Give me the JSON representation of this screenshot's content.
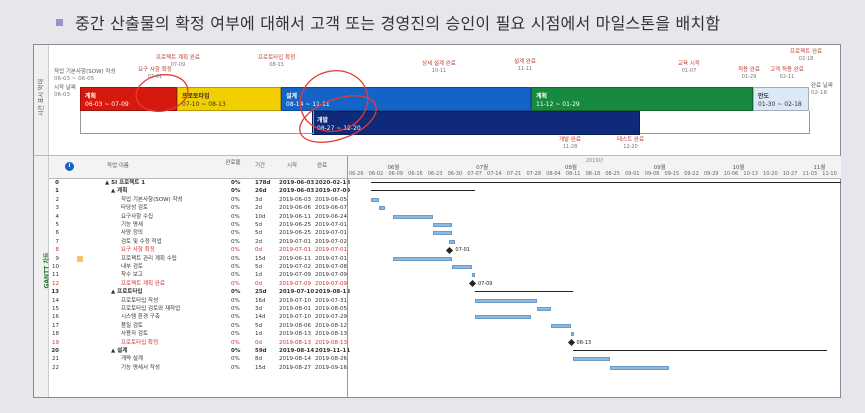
{
  "heading": "중간 산출물의 확정 여부에 대해서 고객 또는 경영진의 승인이 필요 시점에서 마일스톤을 배치함",
  "timeline": {
    "side_label": "시간 표시 막대",
    "left_labels": [
      {
        "text": "작업 기본사항(SOW) 작성",
        "date": "06-03 ~ 06-05"
      },
      {
        "text": "시작 날짜",
        "date": "06-03"
      }
    ],
    "end_label": {
      "text": "완료 날짜",
      "date": "02-18"
    },
    "bars": [
      {
        "name": "계획",
        "dates": "06-03 ~ 07-09",
        "color": "#d6190f"
      },
      {
        "name": "프로토타입",
        "dates": "07-10 ~ 08-13",
        "color": "#f2cf00"
      },
      {
        "name": "설계",
        "dates": "08-14 ~ 11-11",
        "color": "#1464c8"
      },
      {
        "name": "계획",
        "dates": "11-12 ~ 01-29",
        "color": "#178a3f"
      },
      {
        "name": "안도",
        "dates": "01-30 ~ 02-18",
        "color": "#dbe9f6"
      },
      {
        "name": "개발",
        "dates": "08-27 ~ 12-20",
        "color": "#0e2a78"
      }
    ],
    "milestones": [
      {
        "text": "요구 사항 확정",
        "date": "07-01"
      },
      {
        "text": "프로젝트 계획 완료",
        "date": "07-09"
      },
      {
        "text": "프로토타입 확정",
        "date": "08-13"
      },
      {
        "text": "상세 설계 완료",
        "date": "10-11"
      },
      {
        "text": "설계 완료",
        "date": "11-11"
      },
      {
        "text": "교육 시작",
        "date": "01-07"
      },
      {
        "text": "적용 완료",
        "date": "01-29"
      },
      {
        "text": "고객 적용 완료",
        "date": "02-11"
      },
      {
        "text": "프로젝트 완료",
        "date": "02-18"
      },
      {
        "text": "개발 완료",
        "date": "11-28"
      },
      {
        "text": "테스트 완료",
        "date": "12-20"
      }
    ]
  },
  "gantt": {
    "side_label": "GANTT 차트",
    "columns": [
      "작업 이름",
      "완료 율",
      "기간",
      "시작",
      "완료"
    ],
    "columns_sub": [
      "완료율"
    ],
    "rows": [
      {
        "id": "0",
        "name": "▲ SI 프로젝트 1",
        "pct": "0%",
        "dur": "178d",
        "start": "2019-06-03",
        "end": "2020-02-18",
        "style": "bold"
      },
      {
        "id": "1",
        "name": "▲ 계획",
        "pct": "0%",
        "dur": "26d",
        "start": "2019-06-03",
        "end": "2019-07-09",
        "style": "bold"
      },
      {
        "id": "2",
        "name": "작업 기본사항(SOW) 작성",
        "pct": "0%",
        "dur": "3d",
        "start": "2019-06-03",
        "end": "2019-06-05",
        "style": ""
      },
      {
        "id": "3",
        "name": "타당성 검토",
        "pct": "0%",
        "dur": "2d",
        "start": "2019-06-06",
        "end": "2019-06-07",
        "style": ""
      },
      {
        "id": "4",
        "name": "요구사항 수집",
        "pct": "0%",
        "dur": "10d",
        "start": "2019-06-11",
        "end": "2019-06-24",
        "style": ""
      },
      {
        "id": "5",
        "name": "기능 명세",
        "pct": "0%",
        "dur": "5d",
        "start": "2019-06-25",
        "end": "2019-07-01",
        "style": ""
      },
      {
        "id": "6",
        "name": "사양 정의",
        "pct": "0%",
        "dur": "5d",
        "start": "2019-06-25",
        "end": "2019-07-01",
        "style": ""
      },
      {
        "id": "7",
        "name": "검토 및 수정 작업",
        "pct": "0%",
        "dur": "2d",
        "start": "2019-07-01",
        "end": "2019-07-02",
        "style": ""
      },
      {
        "id": "8",
        "name": "요구 사항 확정",
        "pct": "0%",
        "dur": "0d",
        "start": "2019-07-01",
        "end": "2019-07-01",
        "style": "red"
      },
      {
        "id": "9",
        "name": "프로젝트 관리 계획 수립",
        "pct": "0%",
        "dur": "15d",
        "start": "2019-06-11",
        "end": "2019-07-01",
        "style": ""
      },
      {
        "id": "10",
        "name": "내부 검토",
        "pct": "0%",
        "dur": "5d",
        "start": "2019-07-02",
        "end": "2019-07-08",
        "style": ""
      },
      {
        "id": "11",
        "name": "착수 보고",
        "pct": "0%",
        "dur": "1d",
        "start": "2019-07-09",
        "end": "2019-07-09",
        "style": ""
      },
      {
        "id": "12",
        "name": "프로젝트 계획 완료",
        "pct": "0%",
        "dur": "0d",
        "start": "2019-07-09",
        "end": "2019-07-09",
        "style": "red"
      },
      {
        "id": "13",
        "name": "▲ 프로토타입",
        "pct": "0%",
        "dur": "25d",
        "start": "2019-07-10",
        "end": "2019-08-13",
        "style": "bold"
      },
      {
        "id": "14",
        "name": "프로토타입 작성",
        "pct": "0%",
        "dur": "16d",
        "start": "2019-07-10",
        "end": "2019-07-31",
        "style": ""
      },
      {
        "id": "15",
        "name": "프로토타입 검토와 재작업",
        "pct": "0%",
        "dur": "3d",
        "start": "2019-08-01",
        "end": "2019-08-05",
        "style": ""
      },
      {
        "id": "16",
        "name": "시스템 환경 구축",
        "pct": "0%",
        "dur": "14d",
        "start": "2019-07-10",
        "end": "2019-07-29",
        "style": ""
      },
      {
        "id": "17",
        "name": "품질 검토",
        "pct": "0%",
        "dur": "5d",
        "start": "2019-08-06",
        "end": "2019-08-12",
        "style": ""
      },
      {
        "id": "18",
        "name": "사용자 검토",
        "pct": "0%",
        "dur": "1d",
        "start": "2019-08-13",
        "end": "2019-08-13",
        "style": ""
      },
      {
        "id": "19",
        "name": "프로토타입 확정",
        "pct": "0%",
        "dur": "0d",
        "start": "2019-08-13",
        "end": "2019-08-13",
        "style": "red"
      },
      {
        "id": "20",
        "name": "▲ 설계",
        "pct": "0%",
        "dur": "59d",
        "start": "2019-08-14",
        "end": "2019-11-11",
        "style": "bold"
      },
      {
        "id": "21",
        "name": "개략 설계",
        "pct": "0%",
        "dur": "8d",
        "start": "2019-08-14",
        "end": "2019-08-26",
        "style": ""
      },
      {
        "id": "22",
        "name": "기능 명세서 작성",
        "pct": "0%",
        "dur": "15d",
        "start": "2019-08-27",
        "end": "2019-09-16",
        "style": ""
      }
    ],
    "chart": {
      "year_label": "2019년",
      "months": [
        "06월",
        "07월",
        "08월",
        "09월",
        "10월",
        "11월"
      ],
      "weeks": [
        "06-26",
        "06-02",
        "06-09",
        "06-16",
        "06-23",
        "06-30",
        "07-07",
        "07-14",
        "07-21",
        "07-28",
        "08-04",
        "08-11",
        "08-18",
        "08-25",
        "09-01",
        "09-08",
        "09-15",
        "09-22",
        "09-29",
        "10-06",
        "10-13",
        "10-20",
        "10-27",
        "11-03",
        "11-10"
      ],
      "milestone_labels": [
        "07-01",
        "07-09",
        "08-13"
      ]
    }
  }
}
